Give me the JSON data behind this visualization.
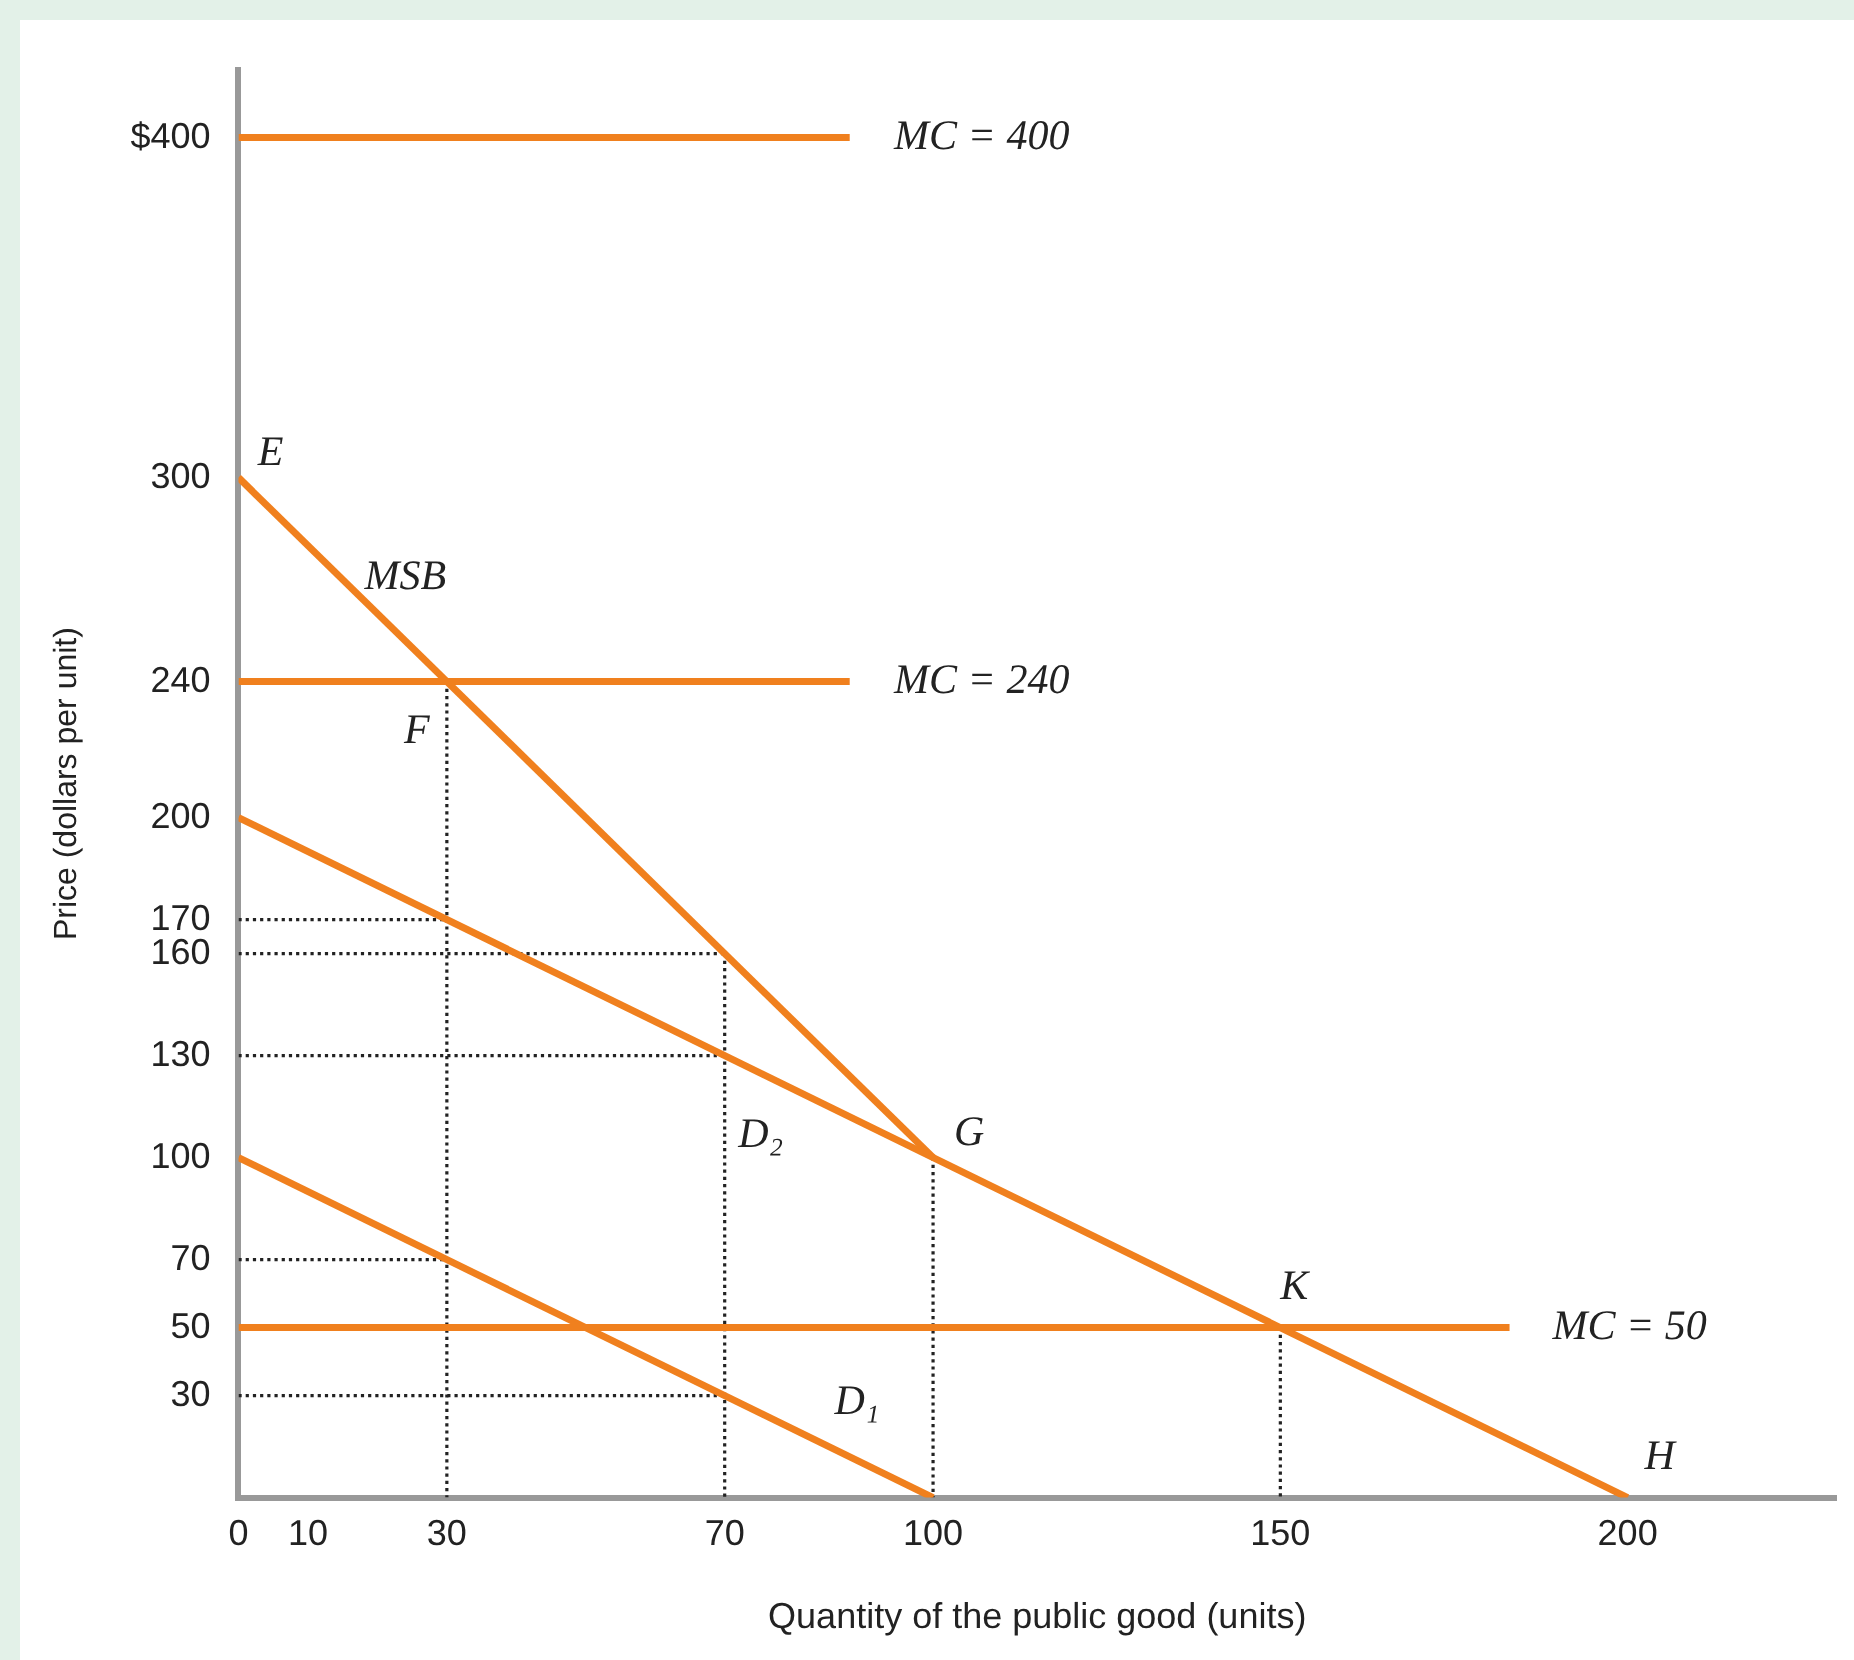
{
  "chart_data": {
    "type": "line",
    "xlabel": "Quantity of the public good (units)",
    "ylabel": "Price (dollars per unit)",
    "xlim": [
      0,
      230
    ],
    "xticks": [
      0,
      10,
      30,
      70,
      100,
      150,
      200
    ],
    "ylim": [
      0,
      420
    ],
    "yticks": [
      30,
      50,
      70,
      100,
      130,
      160,
      170,
      200,
      240,
      300,
      {
        "value": 400,
        "label": "$400"
      }
    ],
    "grid": false,
    "legend": false,
    "marker": "none",
    "series": [
      {
        "color": "#f0801e",
        "x": [
          0,
          88
        ],
        "values": [
          400,
          400
        ]
      },
      {
        "color": "#f0801e",
        "x": [
          0,
          88
        ],
        "values": [
          240,
          240
        ]
      },
      {
        "color": "#f0801e",
        "x": [
          0,
          183
        ],
        "values": [
          50,
          50
        ]
      },
      {
        "color": "#f0801e",
        "x": [
          0,
          100
        ],
        "values": [
          300,
          100
        ]
      },
      {
        "color": "#f0801e",
        "x": [
          0,
          200
        ],
        "values": [
          200,
          0
        ]
      },
      {
        "color": "#f0801e",
        "x": [
          0,
          100
        ],
        "values": [
          100,
          0
        ]
      },
      {
        "color": "#222222",
        "line_style": "dotted",
        "x": [
          30,
          30
        ],
        "values": [
          240,
          0
        ]
      },
      {
        "color": "#222222",
        "line_style": "dotted",
        "x": [
          70,
          70
        ],
        "values": [
          160,
          0
        ]
      },
      {
        "color": "#222222",
        "line_style": "dotted",
        "x": [
          100,
          100
        ],
        "values": [
          100,
          0
        ]
      },
      {
        "color": "#222222",
        "line_style": "dotted",
        "x": [
          150,
          150
        ],
        "values": [
          50,
          0
        ]
      },
      {
        "color": "#222222",
        "line_style": "dotted",
        "x": [
          0,
          30
        ],
        "values": [
          170,
          170
        ]
      },
      {
        "color": "#222222",
        "line_style": "dotted",
        "x": [
          0,
          70
        ],
        "values": [
          160,
          160
        ]
      },
      {
        "color": "#222222",
        "line_style": "dotted",
        "x": [
          0,
          70
        ],
        "values": [
          130,
          130
        ]
      },
      {
        "color": "#222222",
        "line_style": "dotted",
        "x": [
          0,
          30
        ],
        "values": [
          70,
          70
        ]
      },
      {
        "color": "#222222",
        "line_style": "dotted",
        "x": [
          0,
          70
        ],
        "values": [
          30,
          30
        ]
      }
    ],
    "annotations": [
      {
        "text": "E",
        "x": 0,
        "y": 300
      },
      {
        "text": "MSB",
        "x": 20,
        "y": 260
      },
      {
        "text": "F",
        "x": 30,
        "y": 240
      },
      {
        "text": "D₂",
        "x": 70,
        "y": 130
      },
      {
        "text": "G",
        "x": 100,
        "y": 100
      },
      {
        "text": "K",
        "x": 150,
        "y": 50
      },
      {
        "text": "D₁",
        "x": 85,
        "y": 15
      },
      {
        "text": "H",
        "x": 200,
        "y": 0
      },
      {
        "text": "MC = 400",
        "x": 88,
        "y": 400
      },
      {
        "text": "MC = 240",
        "x": 88,
        "y": 240
      },
      {
        "text": "MC = 50",
        "x": 183,
        "y": 50
      }
    ]
  }
}
